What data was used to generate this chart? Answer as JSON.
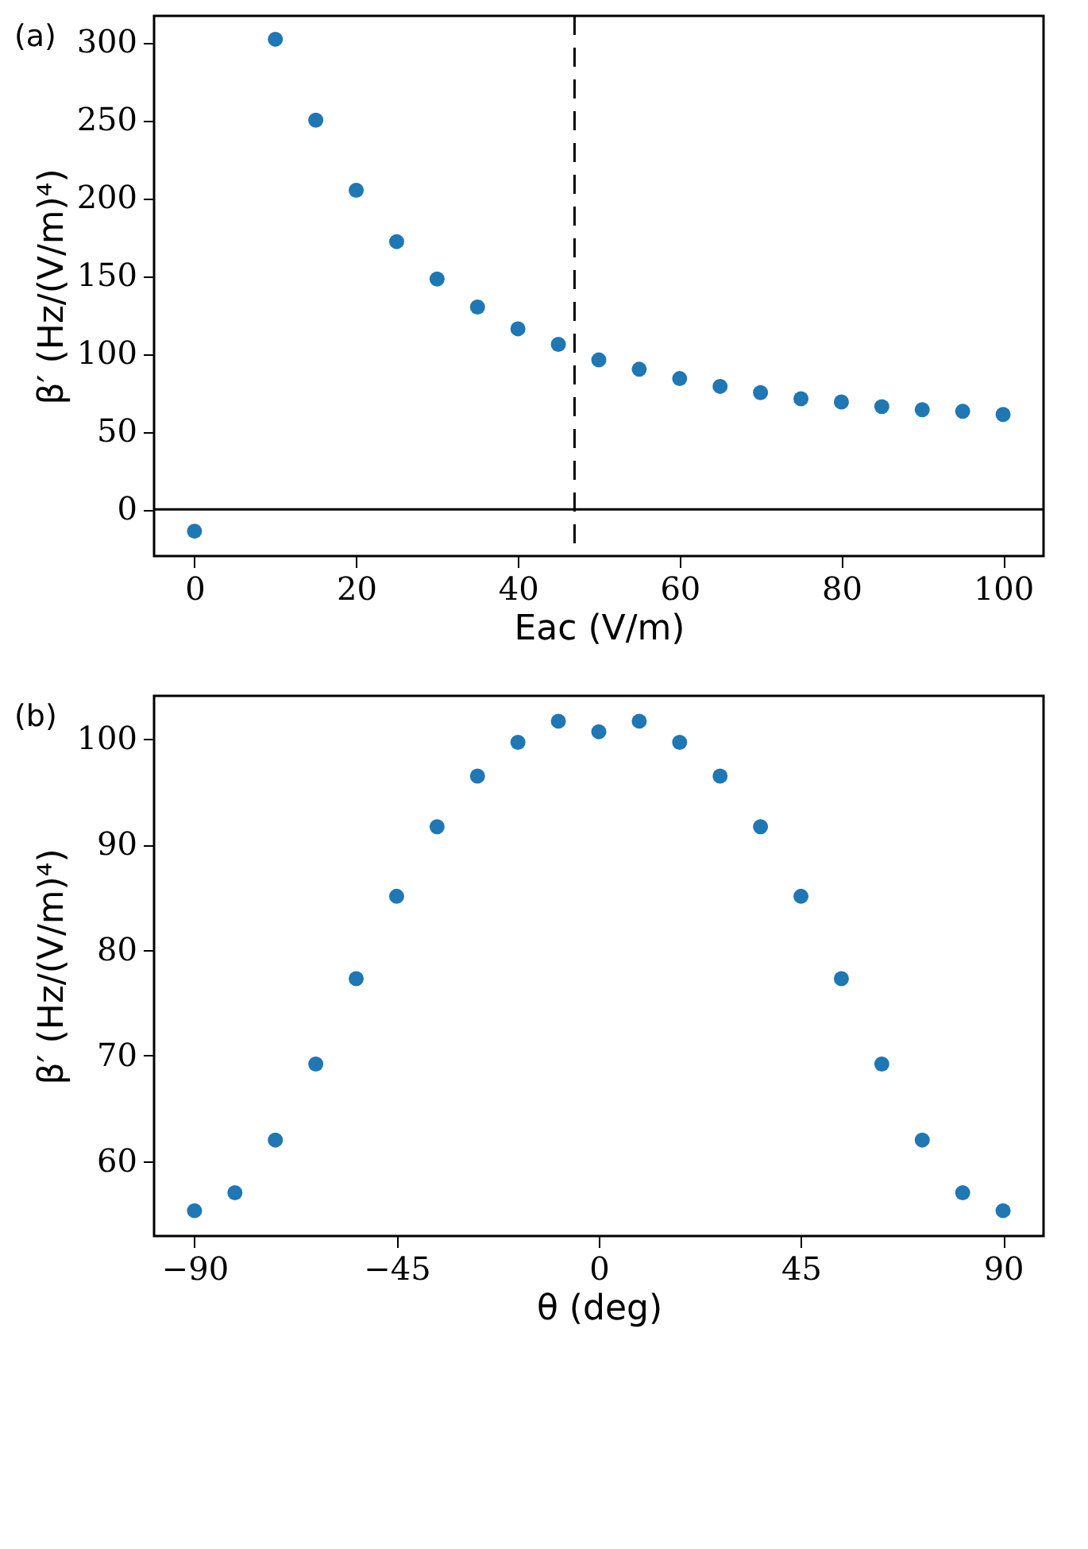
{
  "chart_data": [
    {
      "type": "scatter",
      "xlabel": "Eac (V/m)",
      "ylabel": "β′ (Hz/(V/m)⁴)",
      "annotations": [
        "(a)"
      ],
      "x": [
        0,
        10,
        15,
        20,
        25,
        30,
        35,
        40,
        45,
        50,
        55,
        60,
        65,
        70,
        75,
        80,
        85,
        90,
        95,
        100
      ],
      "series": [
        {
          "color": "#1f77b4",
          "values": [
            -14,
            302,
            250,
            205,
            172,
            148,
            130,
            116,
            106,
            96,
            90,
            84,
            79,
            75,
            71,
            69,
            66,
            64,
            63,
            61
          ]
        }
      ],
      "xlim": [
        -5,
        105
      ],
      "ylim": [
        -30,
        317
      ],
      "xticks": [
        0,
        20,
        40,
        60,
        80,
        100
      ],
      "yticks": [
        0,
        50,
        100,
        150,
        200,
        250,
        300
      ],
      "ref_lines": [
        {
          "axis": "x",
          "value": 47,
          "color": "#000000",
          "line_style": "dashed"
        },
        {
          "axis": "y",
          "value": 0,
          "color": "#000000",
          "line_style": "solid"
        }
      ],
      "grid": false
    },
    {
      "type": "scatter",
      "xlabel": "θ (deg)",
      "ylabel": "β′ (Hz/(V/m)⁴)",
      "annotations": [
        "(b)"
      ],
      "x": [
        -90,
        -81,
        -72,
        -63,
        -54,
        -45,
        -36,
        -27,
        -18,
        -9,
        0,
        9,
        18,
        27,
        36,
        45,
        54,
        63,
        72,
        81,
        90
      ],
      "series": [
        {
          "color": "#1f77b4",
          "values": [
            55.3,
            57.0,
            62.0,
            69.2,
            77.3,
            85.1,
            91.7,
            96.5,
            99.7,
            101.7,
            100.7,
            101.7,
            99.7,
            96.5,
            91.7,
            85.1,
            77.3,
            69.2,
            62.0,
            57.0,
            55.3
          ]
        }
      ],
      "xlim": [
        -99,
        99
      ],
      "ylim": [
        52.9,
        104.1
      ],
      "xticks": [
        {
          "value": -90,
          "label": "−90"
        },
        {
          "value": -45,
          "label": "−45"
        },
        0,
        45,
        90
      ],
      "yticks": [
        60,
        70,
        80,
        90,
        100
      ],
      "grid": false
    }
  ]
}
